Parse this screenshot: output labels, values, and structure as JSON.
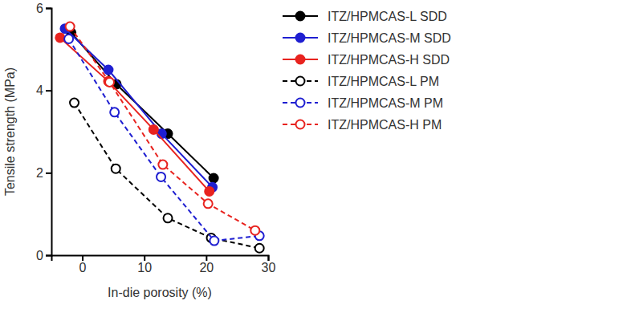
{
  "chart_data": {
    "type": "line",
    "xlabel": "In-die porosity (%)",
    "ylabel": "Tensile strength (MPa)",
    "xlim": [
      -5,
      30
    ],
    "xticks": [
      0,
      10,
      20,
      30
    ],
    "ylim": [
      0,
      6
    ],
    "yticks": [
      0,
      2,
      4,
      6
    ],
    "grid": false,
    "legend": "right",
    "series": [
      {
        "name": "ITZ/HPMCAS-L SDD",
        "color": "#000000",
        "marker": "filled-circle",
        "line_style": "solid",
        "x": [
          -1.8,
          5.5,
          13.8,
          21.2
        ],
        "values": [
          5.4,
          4.15,
          2.95,
          1.87
        ]
      },
      {
        "name": "ITZ/HPMCAS-M SDD",
        "color": "#1f1fd1",
        "marker": "filled-circle",
        "line_style": "solid",
        "x": [
          -2.8,
          4.2,
          12.8,
          21.0
        ],
        "values": [
          5.5,
          4.5,
          2.95,
          1.65
        ]
      },
      {
        "name": "ITZ/HPMCAS-H SDD",
        "color": "#e8231f",
        "marker": "filled-circle",
        "line_style": "solid",
        "x": [
          -3.6,
          4.2,
          11.5,
          20.5
        ],
        "values": [
          5.28,
          4.22,
          3.05,
          1.55
        ]
      },
      {
        "name": "ITZ/HPMCAS-L PM",
        "color": "#000000",
        "marker": "open-circle",
        "line_style": "dashed",
        "x": [
          -1.3,
          5.4,
          13.8,
          20.8,
          28.6
        ],
        "values": [
          3.7,
          2.1,
          0.9,
          0.42,
          0.17
        ]
      },
      {
        "name": "ITZ/HPMCAS-M PM",
        "color": "#1f1fd1",
        "marker": "open-circle",
        "line_style": "dashed",
        "x": [
          -2.2,
          5.2,
          12.7,
          21.3,
          28.6
        ],
        "values": [
          5.25,
          3.47,
          1.9,
          0.35,
          0.47
        ]
      },
      {
        "name": "ITZ/HPMCAS-H PM",
        "color": "#e8231f",
        "marker": "open-circle",
        "line_style": "dashed",
        "x": [
          -2.0,
          4.4,
          13.0,
          20.3,
          27.9
        ],
        "values": [
          5.55,
          4.2,
          2.2,
          1.25,
          0.6
        ]
      }
    ]
  }
}
